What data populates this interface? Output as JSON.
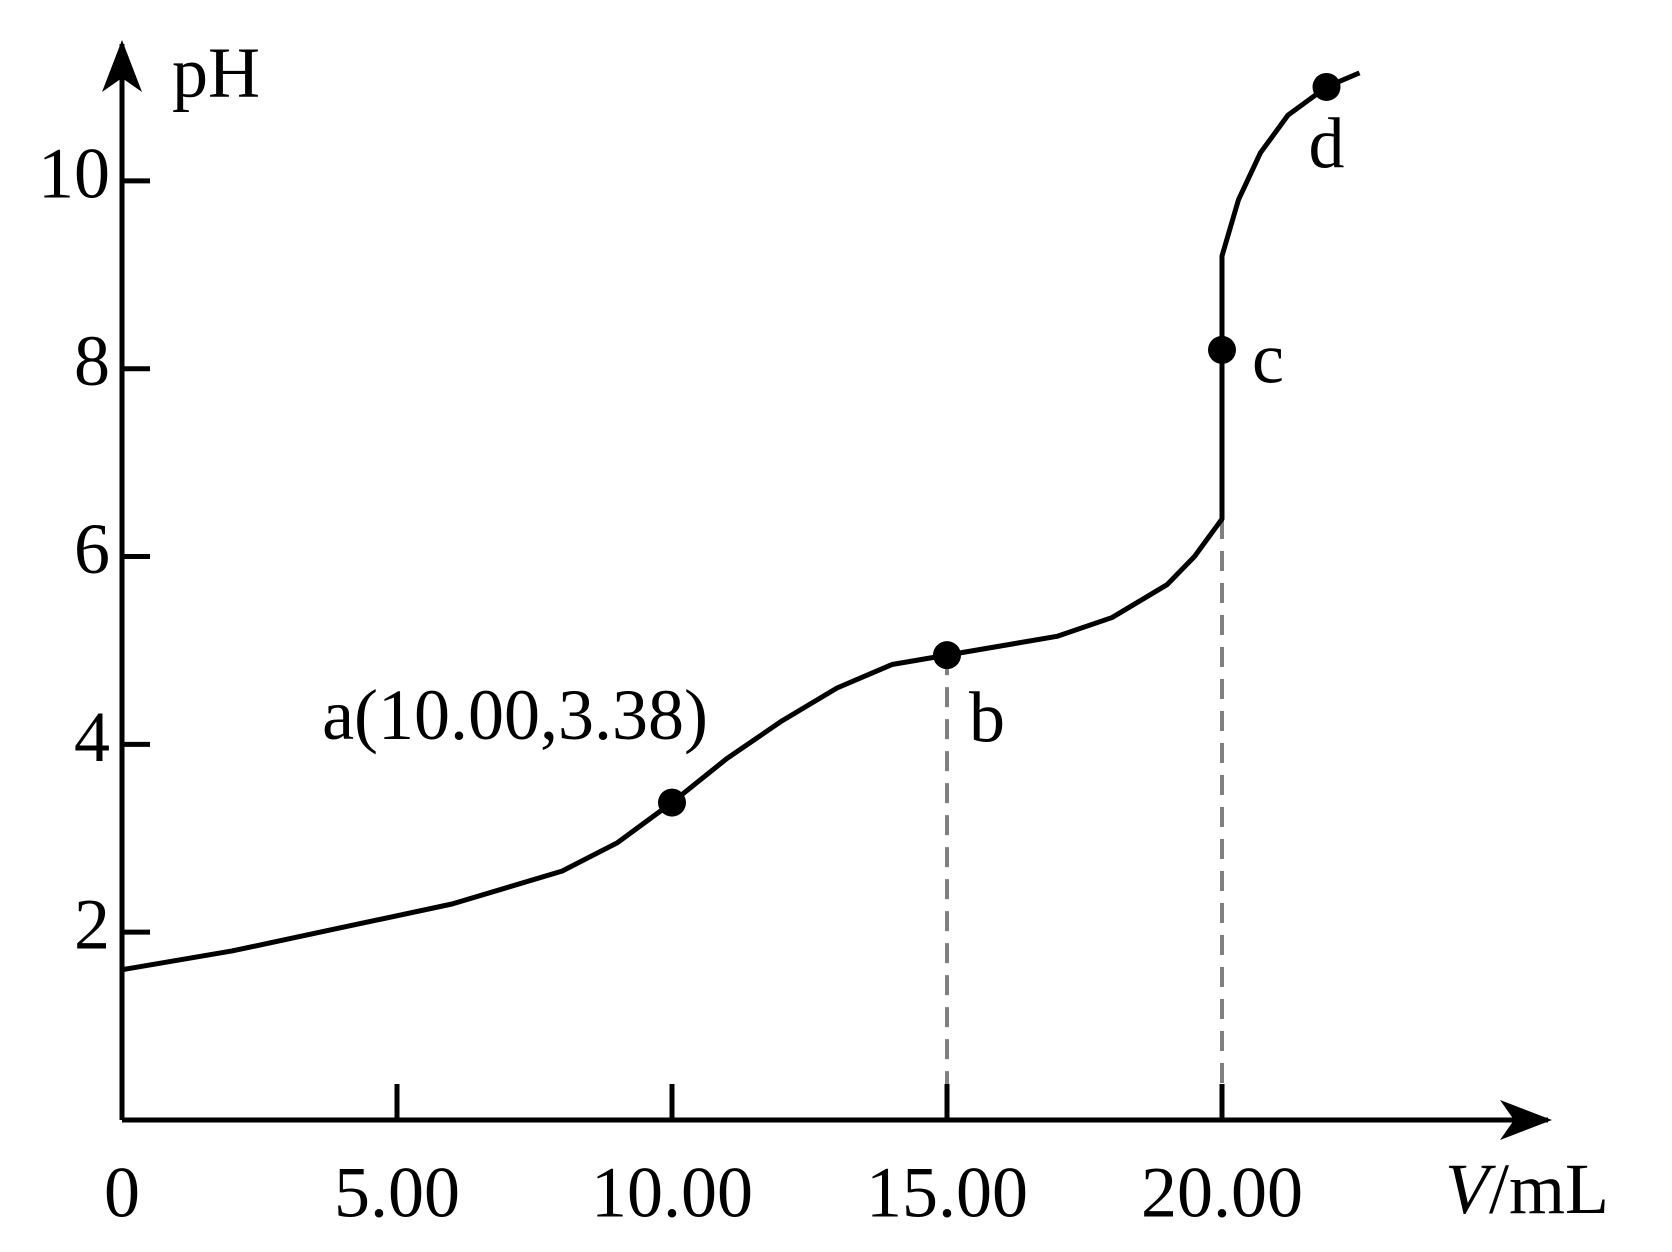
{
  "chart_data": {
    "type": "line",
    "y_label": "pH",
    "x_label": {
      "variable": "V",
      "unit": "/mL"
    },
    "xlim": [
      0,
      26
    ],
    "ylim": [
      0,
      11.5
    ],
    "xticks": [
      0,
      {
        "value": 5,
        "label": "5.00"
      },
      {
        "value": 10,
        "label": "10.00"
      },
      {
        "value": 15,
        "label": "15.00"
      },
      {
        "value": 20,
        "label": "20.00"
      }
    ],
    "yticks": [
      2,
      4,
      6,
      8,
      10
    ],
    "series": [
      {
        "color": "#000000",
        "x": [
          0,
          2,
          4,
          6,
          8,
          9,
          10,
          11,
          12,
          13,
          14,
          15,
          16,
          17,
          18,
          19,
          19.5,
          20,
          20,
          20.3,
          20.7,
          21.2,
          21.9,
          22.5
        ],
        "values": [
          1.6,
          1.8,
          2.05,
          2.3,
          2.65,
          2.95,
          3.38,
          3.85,
          4.25,
          4.6,
          4.85,
          4.95,
          5.05,
          5.15,
          5.35,
          5.7,
          6.0,
          6.4,
          9.2,
          9.8,
          10.3,
          10.7,
          11.0,
          11.15
        ]
      }
    ],
    "points": {
      "color": "#000000",
      "labels": [
        "a(10.00,3.38)",
        "b",
        "c",
        "d"
      ],
      "x": [
        10,
        15,
        20,
        21.9
      ],
      "values": [
        3.38,
        4.95,
        8.2,
        11.0
      ]
    },
    "guides": {
      "color": "#808080",
      "style": "dashed"
    }
  }
}
